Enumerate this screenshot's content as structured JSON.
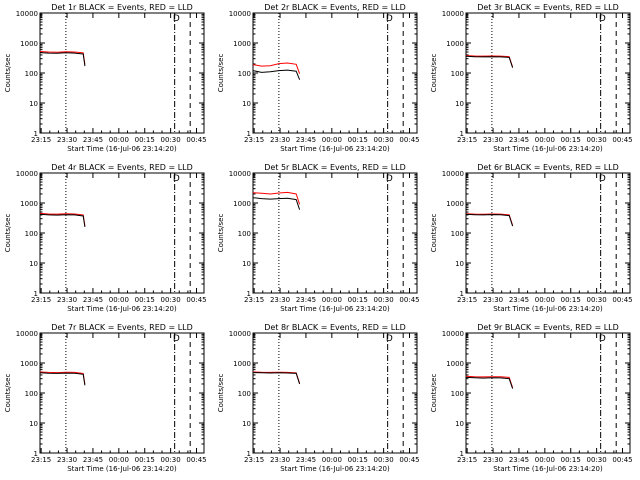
{
  "x_start_label": "Start Time (16-Jul-06 23:14:20)",
  "y_label": "Counts/sec",
  "colors": {
    "events": "#000000",
    "lld": "#ff0000",
    "axis": "#000000"
  },
  "chart_data": [
    {
      "type": "line",
      "title": "Det 1r BLACK = Events, RED = LLD",
      "xlabel": "Start Time (16-Jul-06 23:14:20)",
      "ylabel": "Counts/sec",
      "yscale": "log",
      "ylim": [
        1,
        10000
      ],
      "xlim_minutes": [
        0,
        95
      ],
      "x_ticks": [
        "23:15",
        "23:30",
        "23:45",
        "00:00",
        "00:15",
        "00:30",
        "00:45"
      ],
      "y_ticks": [
        "1",
        "10",
        "100",
        "1000",
        "10000"
      ],
      "markers": {
        "dotted": 15,
        "dashdot": 78,
        "dashed": 87,
        "label": "D",
        "label_at": 79
      },
      "series": [
        {
          "name": "Events",
          "x": [
            0,
            5,
            10,
            15,
            20,
            25,
            26
          ],
          "y": [
            480,
            460,
            455,
            470,
            460,
            430,
            170
          ]
        },
        {
          "name": "LLD",
          "x": [
            0,
            5,
            10,
            15,
            20,
            25,
            26
          ],
          "y": [
            520,
            500,
            495,
            510,
            500,
            470,
            190
          ]
        }
      ]
    },
    {
      "type": "line",
      "title": "Det 2r BLACK = Events, RED = LLD",
      "xlabel": "Start Time (16-Jul-06 23:14:20)",
      "ylabel": "Counts/sec",
      "yscale": "log",
      "ylim": [
        1,
        10000
      ],
      "xlim_minutes": [
        0,
        95
      ],
      "x_ticks": [
        "23:15",
        "23:30",
        "23:45",
        "00:00",
        "00:15",
        "00:30",
        "00:45"
      ],
      "y_ticks": [
        "1",
        "10",
        "100",
        "1000",
        "10000"
      ],
      "markers": {
        "dotted": 15,
        "dashdot": 78,
        "dashed": 87,
        "label": "D",
        "label_at": 79
      },
      "series": [
        {
          "name": "Events",
          "x": [
            0,
            5,
            10,
            15,
            20,
            25,
            27
          ],
          "y": [
            120,
            105,
            110,
            120,
            125,
            115,
            60
          ]
        },
        {
          "name": "LLD",
          "x": [
            0,
            5,
            10,
            15,
            20,
            25,
            27
          ],
          "y": [
            190,
            170,
            175,
            205,
            215,
            195,
            95
          ]
        }
      ]
    },
    {
      "type": "line",
      "title": "Det 3r BLACK = Events, RED = LLD",
      "xlabel": "Start Time (16-Jul-06 23:14:20)",
      "ylabel": "Counts/sec",
      "yscale": "log",
      "ylim": [
        1,
        10000
      ],
      "xlim_minutes": [
        0,
        95
      ],
      "x_ticks": [
        "23:15",
        "23:30",
        "23:45",
        "00:00",
        "00:15",
        "00:30",
        "00:45"
      ],
      "y_ticks": [
        "1",
        "10",
        "100",
        "1000",
        "10000"
      ],
      "markers": {
        "dotted": 15,
        "dashdot": 78,
        "dashed": 87,
        "label": "D",
        "label_at": 79
      },
      "series": [
        {
          "name": "Events",
          "x": [
            0,
            5,
            10,
            15,
            20,
            25,
            27
          ],
          "y": [
            360,
            350,
            345,
            350,
            345,
            330,
            150
          ]
        },
        {
          "name": "LLD",
          "x": [
            0,
            5,
            10,
            15,
            20,
            25,
            27
          ],
          "y": [
            380,
            370,
            365,
            370,
            365,
            350,
            160
          ]
        }
      ]
    },
    {
      "type": "line",
      "title": "Det 4r BLACK = Events, RED = LLD",
      "xlabel": "Start Time (16-Jul-06 23:14:20)",
      "ylabel": "Counts/sec",
      "yscale": "log",
      "ylim": [
        1,
        10000
      ],
      "xlim_minutes": [
        0,
        95
      ],
      "x_ticks": [
        "23:15",
        "23:30",
        "23:45",
        "00:00",
        "00:15",
        "00:30",
        "00:45"
      ],
      "y_ticks": [
        "1",
        "10",
        "100",
        "1000",
        "10000"
      ],
      "markers": {
        "dotted": 15,
        "dashdot": 78,
        "dashed": 87,
        "label": "D",
        "label_at": 79
      },
      "series": [
        {
          "name": "Events",
          "x": [
            0,
            5,
            10,
            15,
            20,
            25,
            26
          ],
          "y": [
            420,
            400,
            395,
            405,
            400,
            370,
            160
          ]
        },
        {
          "name": "LLD",
          "x": [
            0,
            5,
            10,
            15,
            20,
            25,
            26
          ],
          "y": [
            450,
            430,
            425,
            435,
            430,
            400,
            175
          ]
        }
      ]
    },
    {
      "type": "line",
      "title": "Det 5r BLACK = Events, RED = LLD",
      "xlabel": "Start Time (16-Jul-06 23:14:20)",
      "ylabel": "Counts/sec",
      "yscale": "log",
      "ylim": [
        1,
        10000
      ],
      "xlim_minutes": [
        0,
        95
      ],
      "x_ticks": [
        "23:15",
        "23:30",
        "23:45",
        "00:00",
        "00:15",
        "00:30",
        "00:45"
      ],
      "y_ticks": [
        "1",
        "10",
        "100",
        "1000",
        "10000"
      ],
      "markers": {
        "dotted": 15,
        "dashdot": 78,
        "dashed": 87,
        "label": "D",
        "label_at": 79
      },
      "series": [
        {
          "name": "Events",
          "x": [
            0,
            5,
            10,
            15,
            20,
            25,
            27
          ],
          "y": [
            1500,
            1400,
            1350,
            1400,
            1450,
            1300,
            600
          ]
        },
        {
          "name": "LLD",
          "x": [
            0,
            5,
            10,
            15,
            20,
            25,
            27
          ],
          "y": [
            2200,
            2100,
            2000,
            2150,
            2250,
            2000,
            900
          ]
        }
      ]
    },
    {
      "type": "line",
      "title": "Det 6r BLACK = Events, RED = LLD",
      "xlabel": "Start Time (16-Jul-06 23:14:20)",
      "ylabel": "Counts/sec",
      "yscale": "log",
      "ylim": [
        1,
        10000
      ],
      "xlim_minutes": [
        0,
        95
      ],
      "x_ticks": [
        "23:15",
        "23:30",
        "23:45",
        "00:00",
        "00:15",
        "00:30",
        "00:45"
      ],
      "y_ticks": [
        "1",
        "10",
        "100",
        "1000",
        "10000"
      ],
      "markers": {
        "dotted": 15,
        "dashdot": 78,
        "dashed": 87,
        "label": "D",
        "label_at": 79
      },
      "series": [
        {
          "name": "Events",
          "x": [
            0,
            5,
            10,
            15,
            20,
            25,
            27
          ],
          "y": [
            420,
            405,
            400,
            410,
            405,
            380,
            170
          ]
        },
        {
          "name": "LLD",
          "x": [
            0,
            5,
            10,
            15,
            20,
            25,
            27
          ],
          "y": [
            440,
            425,
            420,
            430,
            425,
            400,
            180
          ]
        }
      ]
    },
    {
      "type": "line",
      "title": "Det 7r BLACK = Events, RED = LLD",
      "xlabel": "Start Time (16-Jul-06 23:14:20)",
      "ylabel": "Counts/sec",
      "yscale": "log",
      "ylim": [
        1,
        10000
      ],
      "xlim_minutes": [
        0,
        95
      ],
      "x_ticks": [
        "23:15",
        "23:30",
        "23:45",
        "00:00",
        "00:15",
        "00:30",
        "00:45"
      ],
      "y_ticks": [
        "1",
        "10",
        "100",
        "1000",
        "10000"
      ],
      "markers": {
        "dotted": 15,
        "dashdot": 78,
        "dashed": 87,
        "label": "D",
        "label_at": 79
      },
      "series": [
        {
          "name": "Events",
          "x": [
            0,
            5,
            10,
            15,
            20,
            25,
            26
          ],
          "y": [
            470,
            455,
            450,
            460,
            455,
            420,
            180
          ]
        },
        {
          "name": "LLD",
          "x": [
            0,
            5,
            10,
            15,
            20,
            25,
            26
          ],
          "y": [
            500,
            485,
            480,
            490,
            485,
            450,
            195
          ]
        }
      ]
    },
    {
      "type": "line",
      "title": "Det 8r BLACK = Events, RED = LLD",
      "xlabel": "Start Time (16-Jul-06 23:14:20)",
      "ylabel": "Counts/sec",
      "yscale": "log",
      "ylim": [
        1,
        10000
      ],
      "xlim_minutes": [
        0,
        95
      ],
      "x_ticks": [
        "23:15",
        "23:30",
        "23:45",
        "00:00",
        "00:15",
        "00:30",
        "00:45"
      ],
      "y_ticks": [
        "1",
        "10",
        "100",
        "1000",
        "10000"
      ],
      "markers": {
        "dotted": 15,
        "dashdot": 78,
        "dashed": 87,
        "label": "D",
        "label_at": 79
      },
      "series": [
        {
          "name": "Events",
          "x": [
            0,
            5,
            10,
            15,
            20,
            25,
            27
          ],
          "y": [
            480,
            470,
            465,
            470,
            465,
            450,
            200
          ]
        },
        {
          "name": "LLD",
          "x": [
            0,
            5,
            10,
            15,
            20,
            25,
            27
          ],
          "y": [
            500,
            490,
            485,
            490,
            485,
            470,
            210
          ]
        }
      ]
    },
    {
      "type": "line",
      "title": "Det 9r BLACK = Events, RED = LLD",
      "xlabel": "Start Time (16-Jul-06 23:14:20)",
      "ylabel": "Counts/sec",
      "yscale": "log",
      "ylim": [
        1,
        10000
      ],
      "xlim_minutes": [
        0,
        95
      ],
      "x_ticks": [
        "23:15",
        "23:30",
        "23:45",
        "00:00",
        "00:15",
        "00:30",
        "00:45"
      ],
      "y_ticks": [
        "1",
        "10",
        "100",
        "1000",
        "10000"
      ],
      "markers": {
        "dotted": 15,
        "dashdot": 78,
        "dashed": 87,
        "label": "D",
        "label_at": 79
      },
      "series": [
        {
          "name": "Events",
          "x": [
            0,
            5,
            10,
            15,
            20,
            25,
            27
          ],
          "y": [
            330,
            320,
            315,
            320,
            318,
            300,
            140
          ]
        },
        {
          "name": "LLD",
          "x": [
            0,
            5,
            10,
            15,
            20,
            25,
            27
          ],
          "y": [
            360,
            350,
            345,
            350,
            348,
            330,
            150
          ]
        }
      ]
    }
  ]
}
